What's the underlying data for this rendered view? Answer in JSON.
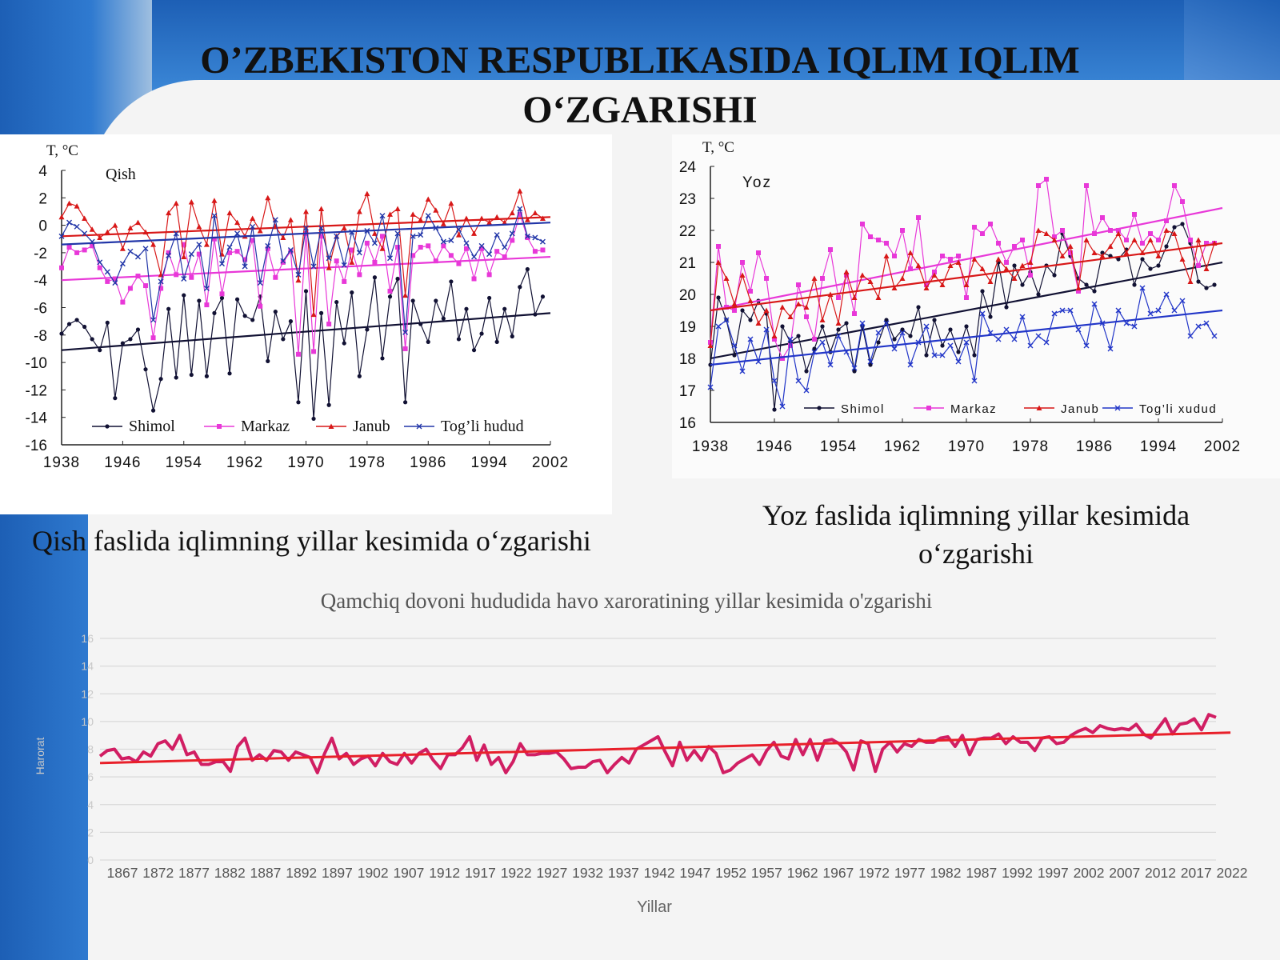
{
  "slide": {
    "title": "O’ZBEKISTON RESPUBLIKASIDA IQLIM IQLIM O‘ZGARISHI",
    "caption_winter": "Qish faslida iqlimning yillar kesimida o‘zgarishi",
    "caption_summer": "Yoz faslida iqlimning yillar kesimida o‘zgarishi"
  },
  "chart_data": [
    {
      "type": "line",
      "title": "Qish",
      "ylabel": "T, °C",
      "xlabel": "",
      "ylim": [
        -16,
        4
      ],
      "yticks": [
        4,
        2,
        0,
        -2,
        -4,
        -6,
        -8,
        -10,
        -12,
        -14,
        -16
      ],
      "xlim": [
        1938,
        2002
      ],
      "xticks": [
        1938,
        1946,
        1954,
        1962,
        1970,
        1978,
        1986,
        1994,
        2002
      ],
      "legend_position": "bottom",
      "series": [
        {
          "name": "Shimol",
          "color": "#111133",
          "marker": "dot",
          "x_start": 1938,
          "x_step": 1,
          "values": [
            -7.9,
            -7.2,
            -6.9,
            -7.4,
            -8.3,
            -9.1,
            -7.1,
            -12.6,
            -8.6,
            -8.3,
            -7.6,
            -10.5,
            -13.5,
            -11.2,
            -6.1,
            -11.1,
            -5.1,
            -10.9,
            -5.5,
            -11.0,
            -6.4,
            -5.3,
            -10.8,
            -5.4,
            -6.6,
            -6.9,
            -5.2,
            -9.9,
            -6.3,
            -8.3,
            -7.0,
            -12.9,
            -4.8,
            -14.1,
            -6.4,
            -13.1,
            -5.6,
            -8.6,
            -4.9,
            -11.0,
            -7.6,
            -3.8,
            -9.7,
            -5.2,
            -3.9,
            -12.9,
            -5.5,
            -7.2,
            -8.5,
            -5.5,
            -6.8,
            -4.1,
            -8.3,
            -6.1,
            -9.1,
            -7.9,
            -5.3,
            -8.5,
            -6.1,
            -8.1,
            -4.5,
            -3.2,
            -6.5,
            -5.2
          ],
          "trend": [
            -9.1,
            -6.4
          ]
        },
        {
          "name": "Markaz",
          "color": "#e838d8",
          "marker": "square",
          "x_start": 1938,
          "x_step": 1,
          "values": [
            -3.1,
            -1.6,
            -2.0,
            -1.8,
            -1.5,
            -3.1,
            -4.1,
            -3.9,
            -5.6,
            -4.6,
            -3.7,
            -4.4,
            -8.2,
            -4.6,
            -2.0,
            -3.6,
            -1.4,
            -3.8,
            -2.1,
            -5.8,
            -1.0,
            -5.0,
            -2.0,
            -1.9,
            -2.5,
            -1.1,
            -5.9,
            -1.7,
            -3.8,
            -2.7,
            -1.9,
            -9.4,
            -0.6,
            -9.2,
            -0.8,
            -7.2,
            -2.6,
            -4.1,
            -1.8,
            -3.6,
            -1.3,
            -2.7,
            -0.8,
            -4.8,
            -1.6,
            -9.0,
            -2.2,
            -1.6,
            -1.5,
            -2.6,
            -1.5,
            -2.2,
            -2.8,
            -1.7,
            -3.9,
            -1.7,
            -3.6,
            -1.9,
            -2.3,
            -1.1,
            0.8,
            -0.9,
            -1.9,
            -1.8
          ],
          "trend": [
            -4.0,
            -2.3
          ]
        },
        {
          "name": "Janub",
          "color": "#d81818",
          "marker": "triangle",
          "x_start": 1938,
          "x_step": 1,
          "values": [
            0.6,
            1.6,
            1.4,
            0.5,
            -0.3,
            -0.9,
            -0.5,
            0.0,
            -1.7,
            -0.2,
            0.2,
            -0.5,
            -1.4,
            -3.6,
            0.9,
            1.6,
            -2.3,
            1.7,
            -0.1,
            -1.4,
            1.8,
            -2.1,
            0.9,
            0.2,
            -0.8,
            0.5,
            -0.4,
            2.0,
            -0.1,
            -0.9,
            0.4,
            -4.0,
            1.0,
            -6.5,
            1.2,
            -3.1,
            -0.8,
            -0.2,
            -2.7,
            1.0,
            2.3,
            -0.6,
            -1.7,
            0.8,
            1.2,
            -5.1,
            0.8,
            0.4,
            1.9,
            1.1,
            0.1,
            1.6,
            -0.7,
            0.5,
            -0.6,
            0.5,
            0.2,
            0.6,
            0.2,
            0.9,
            2.5,
            0.4,
            0.9,
            0.5
          ],
          "trend": [
            -0.8,
            0.6
          ]
        },
        {
          "name": "Tog’li hudud",
          "color": "#2236a8",
          "marker": "x",
          "x_start": 1938,
          "x_step": 1,
          "values": [
            -0.8,
            0.2,
            -0.1,
            -0.6,
            -1.2,
            -2.7,
            -3.4,
            -4.2,
            -2.8,
            -1.9,
            -2.3,
            -1.7,
            -6.9,
            -4.1,
            -2.2,
            -0.6,
            -3.9,
            -2.1,
            -1.4,
            -4.6,
            0.7,
            -2.8,
            -1.6,
            -0.6,
            -3.0,
            -0.1,
            -4.2,
            -1.5,
            0.4,
            -2.6,
            -1.8,
            -3.6,
            -0.2,
            -3.0,
            -0.2,
            -2.4,
            -0.8,
            -2.9,
            -0.5,
            -2.0,
            -0.4,
            -1.3,
            0.7,
            -2.4,
            -0.6,
            -7.8,
            -0.8,
            -0.7,
            0.7,
            -0.2,
            -1.2,
            -1.1,
            -0.3,
            -1.3,
            -2.3,
            -1.5,
            -2.1,
            -0.7,
            -1.6,
            -0.6,
            1.2,
            -0.8,
            -0.9,
            -1.2
          ],
          "trend": [
            -1.4,
            0.2
          ]
        }
      ]
    },
    {
      "type": "line",
      "title": "Yoz",
      "ylabel": "T, °C",
      "xlabel": "",
      "ylim": [
        16,
        24
      ],
      "yticks": [
        24,
        23,
        22,
        21,
        20,
        19,
        18,
        17,
        16
      ],
      "xlim": [
        1938,
        2002
      ],
      "xticks": [
        1938,
        1946,
        1954,
        1962,
        1970,
        1978,
        1986,
        1994,
        2002
      ],
      "legend_position": "bottom",
      "series": [
        {
          "name": "Shimol",
          "color": "#111133",
          "marker": "dot",
          "x_start": 1938,
          "x_step": 1,
          "values": [
            17.8,
            19.9,
            19.2,
            18.1,
            19.5,
            19.2,
            19.8,
            19.4,
            16.4,
            19.0,
            18.5,
            18.7,
            17.6,
            18.3,
            19.0,
            18.2,
            18.9,
            19.1,
            17.6,
            19.0,
            17.8,
            18.5,
            19.2,
            18.6,
            18.9,
            18.7,
            19.6,
            18.1,
            19.2,
            18.4,
            18.9,
            18.2,
            19.0,
            18.1,
            20.1,
            19.3,
            21.0,
            19.6,
            20.9,
            20.3,
            20.7,
            20.0,
            20.9,
            20.6,
            21.9,
            21.2,
            20.5,
            20.3,
            20.1,
            21.3,
            21.2,
            21.1,
            21.4,
            20.3,
            21.1,
            20.8,
            20.9,
            21.5,
            22.1,
            22.2,
            21.6,
            20.4,
            20.2,
            20.3
          ],
          "trend": [
            18.0,
            21.0
          ]
        },
        {
          "name": "Markaz",
          "color": "#e838d8",
          "marker": "square",
          "x_start": 1938,
          "x_step": 1,
          "values": [
            18.5,
            21.5,
            19.6,
            19.5,
            21.0,
            20.1,
            21.3,
            20.5,
            18.6,
            18.0,
            18.4,
            20.3,
            19.3,
            18.6,
            20.5,
            21.4,
            19.9,
            20.6,
            19.4,
            22.2,
            21.8,
            21.7,
            21.6,
            21.2,
            22.0,
            20.8,
            22.4,
            20.3,
            20.7,
            21.2,
            21.1,
            21.2,
            19.9,
            22.1,
            21.9,
            22.2,
            21.6,
            21.0,
            21.5,
            21.7,
            20.6,
            23.4,
            23.6,
            21.8,
            22.0,
            21.3,
            20.1,
            23.4,
            21.9,
            22.4,
            22.0,
            22.0,
            21.7,
            22.5,
            21.6,
            21.9,
            21.7,
            22.3,
            23.4,
            22.9,
            21.7,
            20.9,
            21.6,
            21.6
          ],
          "trend": [
            19.5,
            22.7
          ]
        },
        {
          "name": "Janub",
          "color": "#d81818",
          "marker": "triangle",
          "x_start": 1938,
          "x_step": 1,
          "values": [
            18.4,
            21.0,
            20.5,
            19.7,
            20.6,
            19.8,
            19.1,
            19.5,
            18.7,
            19.6,
            19.3,
            19.7,
            19.6,
            20.5,
            19.2,
            20.0,
            19.1,
            20.7,
            19.9,
            20.6,
            20.4,
            19.9,
            21.2,
            20.2,
            20.5,
            21.3,
            20.9,
            20.2,
            20.6,
            20.3,
            20.9,
            21.0,
            20.3,
            21.1,
            20.8,
            20.4,
            21.1,
            20.8,
            20.5,
            20.9,
            21.0,
            22.0,
            21.9,
            21.7,
            21.2,
            21.5,
            20.2,
            21.7,
            21.3,
            21.2,
            21.5,
            21.9,
            21.3,
            21.7,
            21.3,
            21.7,
            21.2,
            22.0,
            21.9,
            21.1,
            20.4,
            21.7,
            20.8,
            21.6
          ],
          "trend": [
            19.5,
            21.6
          ]
        },
        {
          "name": "Tog’li xudud",
          "color": "#2236c8",
          "marker": "x",
          "x_start": 1938,
          "x_step": 1,
          "values": [
            17.1,
            19.0,
            19.2,
            18.4,
            17.6,
            18.6,
            17.9,
            18.9,
            17.3,
            16.5,
            18.6,
            17.3,
            17.0,
            18.2,
            18.5,
            17.8,
            18.7,
            18.2,
            17.7,
            19.1,
            17.9,
            18.8,
            19.1,
            18.3,
            18.8,
            17.8,
            18.5,
            19.0,
            18.1,
            18.1,
            18.4,
            17.9,
            18.5,
            17.3,
            19.4,
            18.8,
            18.6,
            18.9,
            18.6,
            19.3,
            18.4,
            18.7,
            18.5,
            19.4,
            19.5,
            19.5,
            18.9,
            18.4,
            19.7,
            19.1,
            18.3,
            19.5,
            19.1,
            19.0,
            20.2,
            19.4,
            19.5,
            20.0,
            19.5,
            19.8,
            18.7,
            19.0,
            19.1,
            18.7
          ],
          "trend": [
            17.8,
            19.5
          ]
        }
      ]
    },
    {
      "type": "line",
      "title": "Qamchiq dovoni hududida havo xaroratining yillar kesimida o'zgarishi",
      "xlabel": "Yillar",
      "ylabel": "Harorat",
      "ytick_labels": [
        "0",
        "2",
        "4",
        "6",
        "8",
        "10",
        "12",
        "14",
        "16"
      ],
      "xtick_labels": [
        "1867",
        "1872",
        "1877",
        "1882",
        "1887",
        "1892",
        "1897",
        "1902",
        "1907",
        "1912",
        "1917",
        "1922",
        "1927",
        "1932",
        "1937",
        "1942",
        "1947",
        "1952",
        "1957",
        "1962",
        "1967",
        "1972",
        "1977",
        "1982",
        "1987",
        "1992",
        "1997",
        "2002",
        "2007",
        "2012",
        "2017",
        "2022"
      ],
      "grid": true,
      "series": [
        {
          "name": "",
          "color": "#d11e63",
          "x_start": 1867,
          "x_step": 1,
          "values": [
            7.5,
            7.9,
            8.0,
            7.3,
            7.4,
            7.1,
            7.8,
            7.5,
            8.4,
            8.6,
            8.0,
            9.0,
            7.6,
            7.8,
            6.9,
            6.9,
            7.1,
            7.1,
            6.4,
            8.2,
            8.8,
            7.2,
            7.6,
            7.2,
            7.9,
            7.8,
            7.2,
            7.8,
            7.6,
            7.4,
            6.3,
            7.7,
            8.8,
            7.3,
            7.7,
            6.9,
            7.3,
            7.5,
            6.8,
            7.7,
            7.1,
            6.9,
            7.7,
            7.0,
            7.7,
            8.0,
            7.2,
            6.6,
            7.6,
            7.6,
            8.1,
            8.9,
            7.2,
            8.3,
            6.9,
            7.4,
            6.3,
            7.1,
            8.4,
            7.6,
            7.6,
            7.7,
            7.7,
            7.8,
            7.3,
            6.6,
            6.7,
            6.7,
            7.1,
            7.2,
            6.3,
            6.9,
            7.4,
            7.0,
            8.0,
            8.3,
            8.6,
            8.9,
            7.8,
            6.8,
            8.5,
            7.2,
            7.9,
            7.2,
            8.2,
            7.7,
            6.3,
            6.5,
            7.0,
            7.3,
            7.6,
            6.9,
            7.9,
            8.5,
            7.5,
            7.3,
            8.7,
            7.6,
            8.7,
            7.2,
            8.6,
            8.7,
            8.4,
            7.8,
            6.5,
            8.6,
            8.4,
            6.4,
            8.0,
            8.5,
            7.8,
            8.4,
            8.2,
            8.7,
            8.5,
            8.5,
            8.8,
            8.9,
            8.2,
            9.0,
            7.6,
            8.7,
            8.8,
            8.8,
            9.1,
            8.4,
            8.9,
            8.5,
            8.5,
            7.9,
            8.8,
            8.9,
            8.4,
            8.5,
            9.0,
            9.3,
            9.5,
            9.2,
            9.7,
            9.5,
            9.4,
            9.5,
            9.4,
            9.8,
            9.1,
            8.8,
            9.5,
            10.2,
            9.1,
            9.8,
            9.9,
            10.2,
            9.4,
            10.5,
            10.3
          ]
        },
        {
          "name": "",
          "color": "#e8202a",
          "type": "trend",
          "x_start": 1867,
          "x_end": 2023,
          "values": [
            7.0,
            9.2
          ]
        }
      ]
    }
  ],
  "colors": {
    "slide_blue": "#1d5fb5",
    "trend_red": "#e8202a",
    "series_crimson": "#d11e63"
  }
}
